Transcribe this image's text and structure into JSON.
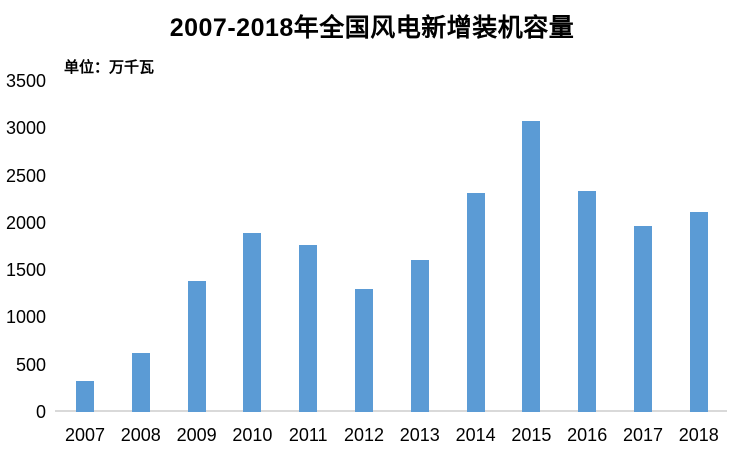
{
  "chart_data": {
    "type": "bar",
    "title": "2007-2018年全国风电新增装机容量",
    "unit_label": "单位：万千瓦",
    "categories": [
      "2007",
      "2008",
      "2009",
      "2010",
      "2011",
      "2012",
      "2013",
      "2014",
      "2015",
      "2016",
      "2017",
      "2018"
    ],
    "values": [
      330,
      625,
      1380,
      1893,
      1763,
      1296,
      1610,
      2319,
      3075,
      2337,
      1966,
      2114
    ],
    "y_ticks": [
      0,
      500,
      1000,
      1500,
      2000,
      2500,
      3000,
      3500
    ],
    "ylim": [
      0,
      3500
    ],
    "xlabel": "",
    "ylabel": "",
    "grid": false,
    "legend": false,
    "colors": {
      "bar": "#5B9BD5",
      "axis_line": "#D9D9D9",
      "text": "#000000",
      "background": "#FFFFFF"
    }
  }
}
